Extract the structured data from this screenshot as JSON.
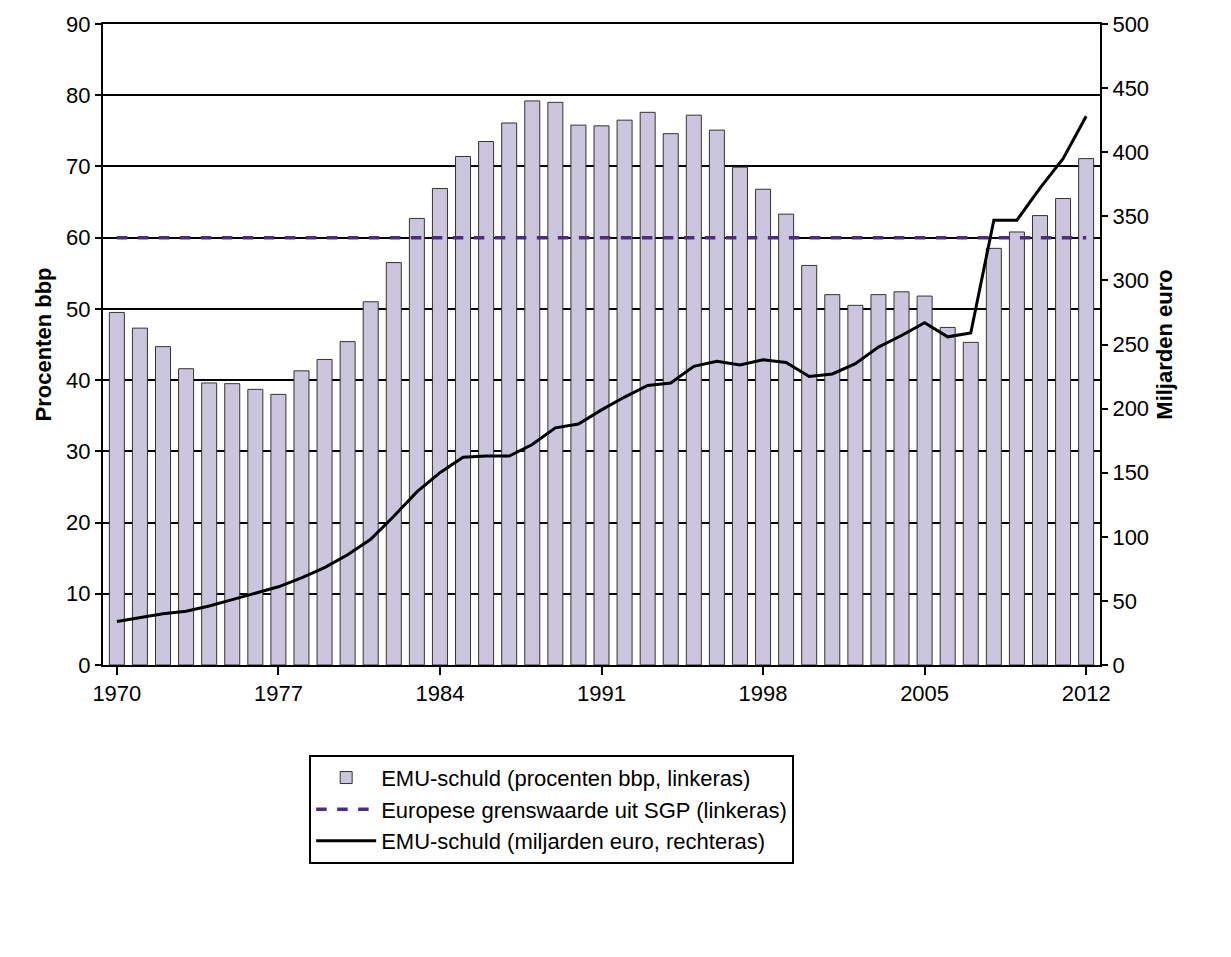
{
  "chart_data": {
    "type": "bar",
    "x": [
      1970,
      1971,
      1972,
      1973,
      1974,
      1975,
      1976,
      1977,
      1978,
      1979,
      1980,
      1981,
      1982,
      1983,
      1984,
      1985,
      1986,
      1987,
      1988,
      1989,
      1990,
      1991,
      1992,
      1993,
      1994,
      1995,
      1996,
      1997,
      1998,
      1999,
      2000,
      2001,
      2002,
      2003,
      2004,
      2005,
      2006,
      2007,
      2008,
      2009,
      2010,
      2011,
      2012
    ],
    "series": [
      {
        "name": "EMU-schuld (procenten bbp, linkeras)",
        "type": "bar",
        "color": "#cbc5de",
        "values": [
          49.5,
          47.3,
          44.7,
          41.6,
          39.6,
          39.5,
          38.7,
          38.0,
          41.3,
          42.9,
          45.4,
          51.0,
          56.5,
          62.7,
          66.9,
          71.4,
          73.5,
          76.1,
          79.2,
          79.0,
          75.8,
          75.7,
          76.5,
          77.6,
          74.6,
          77.2,
          75.1,
          69.9,
          66.8,
          63.3,
          56.1,
          52.0,
          50.5,
          52.0,
          52.4,
          51.8,
          47.4,
          45.3,
          58.5,
          60.8,
          63.1,
          65.5,
          71.1
        ]
      },
      {
        "name": "Europese grenswaarde uit SGP (linkeras)",
        "type": "line",
        "color": "#4b2c7f",
        "line_style": "dashed",
        "values": [
          60,
          60,
          60,
          60,
          60,
          60,
          60,
          60,
          60,
          60,
          60,
          60,
          60,
          60,
          60,
          60,
          60,
          60,
          60,
          60,
          60,
          60,
          60,
          60,
          60,
          60,
          60,
          60,
          60,
          60,
          60,
          60,
          60,
          60,
          60,
          60,
          60,
          60,
          60,
          60,
          60,
          60,
          60
        ]
      },
      {
        "name": "EMU-schuld (miljarden euro, rechteras)",
        "type": "line",
        "color": "#000000",
        "line_style": "solid",
        "axis": "y2",
        "values": [
          34,
          37,
          40,
          42,
          46,
          51,
          56,
          61,
          68,
          76,
          86,
          98,
          116,
          135,
          150,
          162,
          163,
          163,
          172,
          185,
          188,
          199,
          209,
          218,
          220,
          233,
          237,
          234,
          238,
          236,
          225,
          227,
          235,
          248,
          257,
          267,
          256,
          259,
          347,
          347,
          372,
          395,
          428
        ]
      }
    ],
    "y_label": "Procenten bbp",
    "y2_label": "Miljarden euro",
    "xlim": [
      1969.4,
      2012.6
    ],
    "xticks": [
      1970,
      1977,
      1984,
      1991,
      1998,
      2005,
      2012
    ],
    "ylim": [
      0,
      90
    ],
    "yticks": [
      0,
      10,
      20,
      30,
      40,
      50,
      60,
      70,
      80,
      90
    ],
    "y2lim": [
      0,
      500
    ],
    "y2ticks": [
      0,
      50,
      100,
      150,
      200,
      250,
      300,
      350,
      400,
      450,
      500
    ],
    "grid": true,
    "legend": "bottom"
  }
}
